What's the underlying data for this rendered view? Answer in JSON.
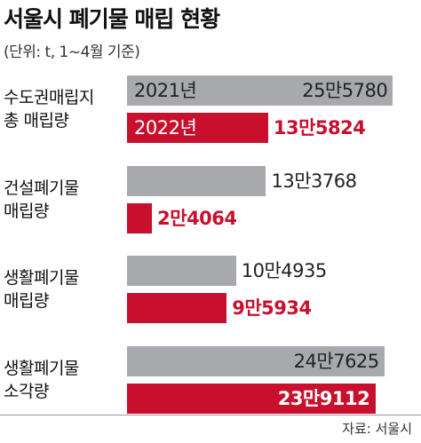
{
  "chart_data": {
    "type": "bar",
    "orientation": "horizontal",
    "title": "서울시 폐기물 매립 현황",
    "subtitle": "(단위: t, 1~4월 기준)",
    "categories": [
      "수도권매립지\n총 매립량",
      "건설폐기물\n매립량",
      "생활폐기물\n매립량",
      "생활폐기물\n소각량"
    ],
    "series": [
      {
        "name": "2021년",
        "color": "#a7a9ac",
        "values": [
          255780,
          133768,
          104935,
          247625
        ],
        "value_labels": [
          "25만5780",
          "13만3768",
          "10만4935",
          "24만7625"
        ]
      },
      {
        "name": "2022년",
        "color": "#c8102e",
        "values": [
          135824,
          24064,
          95934,
          239112
        ],
        "value_labels": [
          "13만5824",
          "2만4064",
          "9만5934",
          "23만9112"
        ]
      }
    ],
    "xlim": [
      0,
      265000
    ],
    "source": "자료: 서울시"
  }
}
